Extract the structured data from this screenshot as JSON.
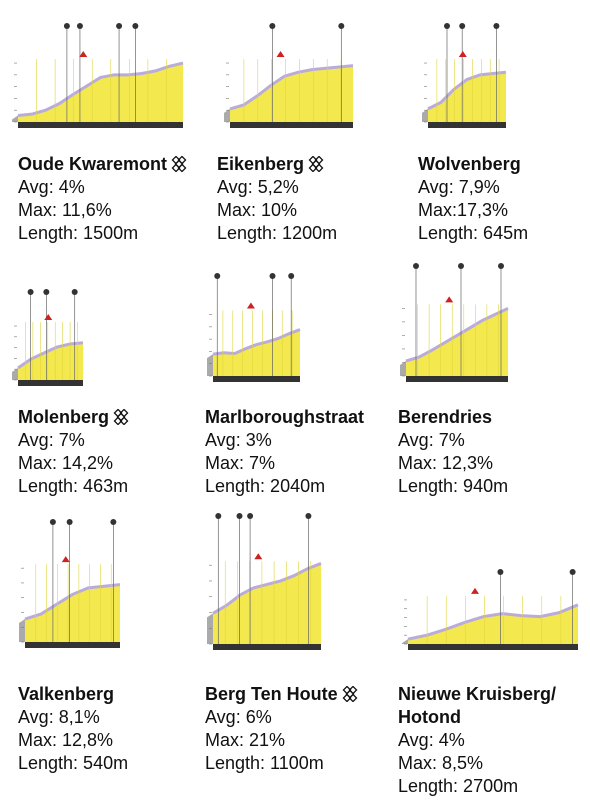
{
  "climbs": [
    {
      "name": "Oude Kwaremont",
      "avg": "Avg: 4%",
      "max": "Max: 11,6%",
      "length": "Length: 1500m"
    },
    {
      "name": "Eikenberg",
      "avg": "Avg: 5,2%",
      "max": "Max: 10%",
      "length": "Length: 1200m"
    },
    {
      "name": "Wolvenberg",
      "avg": "Avg: 7,9%",
      "max": "Max:17,3%",
      "length": "Length: 645m"
    },
    {
      "name": "Molenberg",
      "avg": "Avg: 7%",
      "max": "Max: 14,2%",
      "length": "Length: 463m"
    },
    {
      "name": "Marlboroughstraat",
      "avg": "Avg: 3%",
      "max": "Max: 7%",
      "length": "Length: 2040m"
    },
    {
      "name": "Berendries",
      "avg": "Avg: 7%",
      "max": "Max: 12,3%",
      "length": "Length: 940m"
    },
    {
      "name": "Valkenberg",
      "avg": "Avg: 8,1%",
      "max": "Max: 12,8%",
      "length": "Length: 540m"
    },
    {
      "name": "Berg Ten Houte",
      "avg": "Avg: 6%",
      "max": "Max: 21%",
      "length": "Length: 1100m"
    },
    {
      "name": "Nieuwe Kruisberg/ Hotond",
      "avg": "Avg: 4%",
      "max": "Max: 8,5%",
      "length": "Length: 2700m"
    }
  ]
}
